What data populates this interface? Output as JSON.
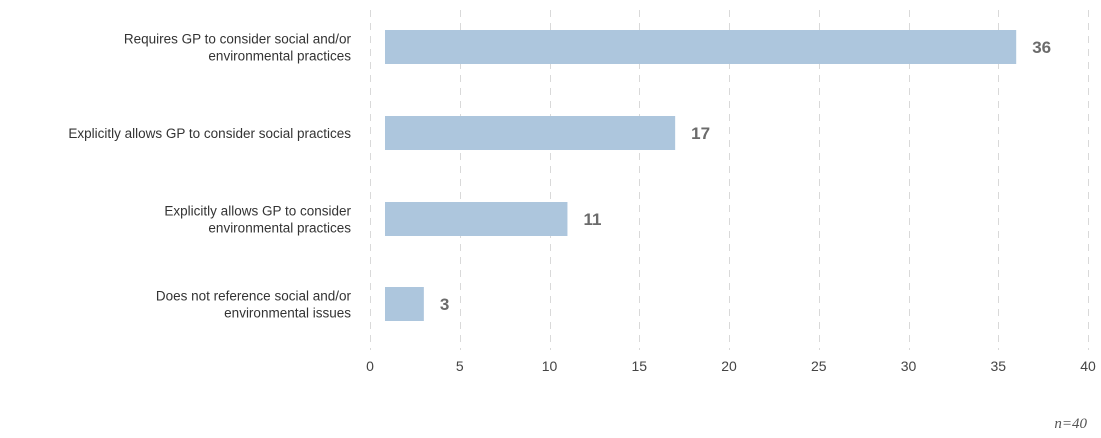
{
  "chart_data": {
    "type": "bar",
    "orientation": "horizontal",
    "categories": [
      [
        "Requires GP to consider social and/or",
        "environmental practices"
      ],
      [
        "Explicitly allows GP to consider social practices"
      ],
      [
        "Explicitly allows GP to consider",
        "environmental practices"
      ],
      [
        "Does not reference social and/or",
        "environmental issues"
      ]
    ],
    "values": [
      36,
      17,
      11,
      3
    ],
    "xlim": [
      0,
      40
    ],
    "xticks": [
      0,
      5,
      10,
      15,
      20,
      25,
      30,
      35,
      40
    ],
    "grid": true,
    "bar_color": "#adc6dd",
    "value_label_color": "#6b6b6b",
    "title": "",
    "xlabel": "",
    "ylabel": ""
  },
  "note": "n=40"
}
